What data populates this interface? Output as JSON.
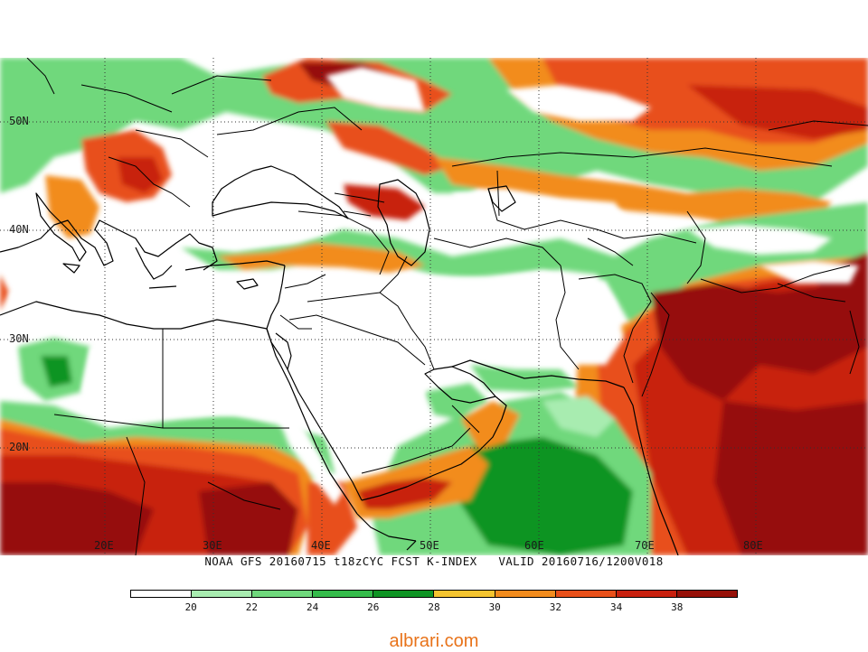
{
  "caption": "NOAA GFS 20160715 t18zCYC FCST K-INDEX   VALID 20160716/1200V018",
  "watermark": "albrari.com",
  "lat_labels": [
    "50N",
    "40N",
    "30N",
    "20N"
  ],
  "lon_labels": [
    "20E",
    "30E",
    "40E",
    "50E",
    "60E",
    "70E",
    "80E"
  ],
  "colorbar": {
    "levels": [
      "20",
      "22",
      "24",
      "26",
      "28",
      "30",
      "32",
      "34",
      "38"
    ],
    "colors": [
      "#ffffff",
      "#a8ecb0",
      "#6fd87c",
      "#34bb4a",
      "#0e9424",
      "#f4c430",
      "#f28c1e",
      "#e8501a",
      "#c8200e",
      "#961008"
    ]
  },
  "palette": {
    "coast": "#000000",
    "grid": "#333333"
  }
}
